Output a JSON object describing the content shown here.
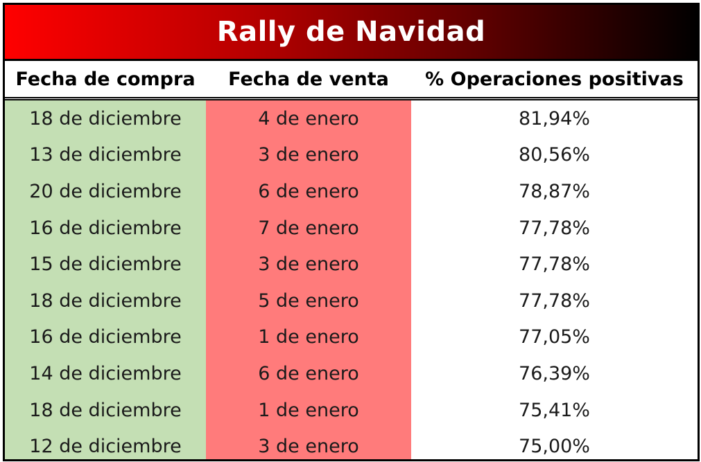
{
  "title": "Rally de Navidad",
  "headers": [
    "Fecha de compra",
    "Fecha de venta",
    "% Operaciones positivas"
  ],
  "rows": [
    [
      "18 de diciembre",
      "4 de enero",
      "81,94%"
    ],
    [
      "13 de diciembre",
      "3 de enero",
      "80,56%"
    ],
    [
      "20 de diciembre",
      "6 de enero",
      "78,87%"
    ],
    [
      "16 de diciembre",
      "7 de enero",
      "77,78%"
    ],
    [
      "15 de diciembre",
      "3 de enero",
      "77,78%"
    ],
    [
      "18 de diciembre",
      "5 de enero",
      "77,78%"
    ],
    [
      "16 de diciembre",
      "1 de enero",
      "77,05%"
    ],
    [
      "14 de diciembre",
      "6 de enero",
      "76,39%"
    ],
    [
      "18 de diciembre",
      "1 de enero",
      "75,41%"
    ],
    [
      "12 de diciembre",
      "3 de enero",
      "75,00%"
    ]
  ],
  "colors": {
    "title_gradient_start": "#ff0000",
    "title_gradient_end": "#000000",
    "buy_column": "#c4dfb4",
    "sell_column": "#ff7b7b",
    "percent_column": "#ffffff"
  }
}
